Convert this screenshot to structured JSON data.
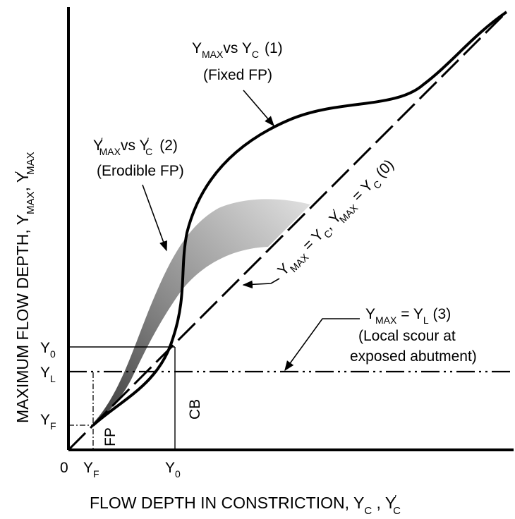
{
  "axes": {
    "x_title_main": "FLOW DEPTH IN CONSTRICTION, Y",
    "x_title_sub_c": "C",
    "x_title_sep": " , Y",
    "x_title_sub_c2": "C",
    "x_title_prime": "′",
    "y_title_main": "MAXIMUM FLOW DEPTH, Y",
    "y_title_sub_max": "MAX",
    "y_title_sep": ", Y",
    "y_title_prime": "′",
    "y_title_sub_max2": "MAX"
  },
  "ticks": {
    "origin": "0",
    "x_yf_main": "Y",
    "x_yf_sub": "F",
    "x_y0_main": "Y",
    "x_y0_sub": "0",
    "y_y0_main": "Y",
    "y_y0_sub": "0",
    "y_yl_main": "Y",
    "y_yl_sub": "L",
    "y_yf_main": "Y",
    "y_yf_sub": "F"
  },
  "zones": {
    "fp": "FP",
    "cb": "CB"
  },
  "curve_fixed": {
    "y": "Y",
    "max": "MAX",
    "vs": "vs Y",
    "c": "C",
    "num": "(1)",
    "desc": "(Fixed FP)"
  },
  "curve_erodible": {
    "y": "Y",
    "prime": "′",
    "max": "MAX",
    "vs": "vs Y",
    "c": "C",
    "num": "(2)",
    "desc": "(Erodible FP)"
  },
  "line_equal": {
    "y1": "Y",
    "max1": "MAX",
    "eq1": " = Y",
    "c1": "C",
    "sep": ", Y",
    "prime": "′",
    "max2": "MAX",
    "eq2": " = Y",
    "c2": "C",
    "num": " (0)"
  },
  "line_local": {
    "y": "Y",
    "max": "MAX",
    "eq": " = Y",
    "l": "L",
    "num": " (3)",
    "desc1": "(Local scour at",
    "desc2": "exposed abutment)"
  },
  "colors": {
    "ink": "#000000",
    "band_dark": "#3c3c3c",
    "band_light": "#d8d8d8"
  }
}
